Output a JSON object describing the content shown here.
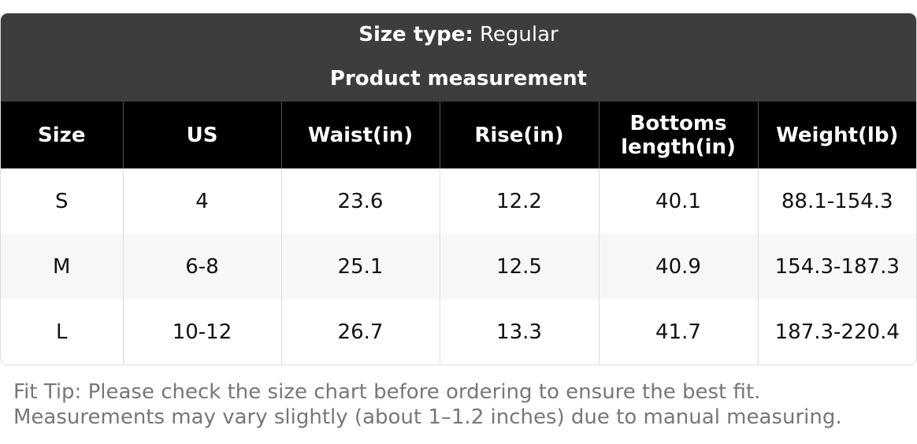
{
  "header": {
    "size_type_label": "Size type:",
    "size_type_value": "Regular",
    "title": "Product measurement"
  },
  "table": {
    "columns": [
      "Size",
      "US",
      "Waist(in)",
      "Rise(in)",
      "Bottoms length(in)",
      "Weight(lb)"
    ],
    "rows": [
      [
        "S",
        "4",
        "23.6",
        "12.2",
        "40.1",
        "88.1-154.3"
      ],
      [
        "M",
        "6-8",
        "25.1",
        "12.5",
        "40.9",
        "154.3-187.3"
      ],
      [
        "L",
        "10-12",
        "26.7",
        "13.3",
        "41.7",
        "187.3-220.4"
      ]
    ]
  },
  "footnote": [
    "Fit Tip: Please check the size chart before ordering to ensure the best fit.",
    "Measurements may vary slightly (about 1–1.2 inches) due to manual measuring."
  ]
}
